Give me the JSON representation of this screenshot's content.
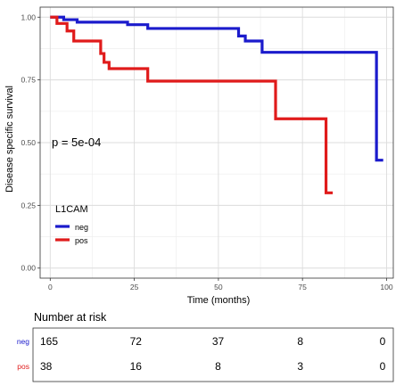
{
  "chart_data": [
    {
      "type": "line",
      "subtype": "kaplan-meier",
      "xlabel": "Time (months)",
      "ylabel": "Disease specific survival",
      "xlim": [
        -3,
        102
      ],
      "ylim": [
        -0.04,
        1.04
      ],
      "x_ticks": [
        0,
        25,
        50,
        75,
        100
      ],
      "x_tick_labels": [
        "0",
        "25",
        "50",
        "75",
        "100"
      ],
      "y_ticks": [
        0,
        0.25,
        0.5,
        0.75,
        1
      ],
      "y_tick_labels": [
        "0.00",
        "0.25",
        "0.50",
        "0.75",
        "1.00"
      ],
      "grid": true,
      "annotation": "p = 5e-04",
      "legend": {
        "title": "L1CAM",
        "placement": "left-bottom inside",
        "entries": [
          "neg",
          "pos"
        ]
      },
      "series": [
        {
          "name": "neg",
          "color": "#1b1bcc",
          "steps": [
            [
              0,
              1.0
            ],
            [
              4,
              0.99
            ],
            [
              8,
              0.98
            ],
            [
              23,
              0.97
            ],
            [
              29,
              0.955
            ],
            [
              56,
              0.925
            ],
            [
              58,
              0.905
            ],
            [
              63,
              0.86
            ],
            [
              97,
              0.43
            ],
            [
              99,
              0.43
            ]
          ]
        },
        {
          "name": "pos",
          "color": "#e01b1b",
          "steps": [
            [
              0,
              1.0
            ],
            [
              2,
              0.975
            ],
            [
              5,
              0.945
            ],
            [
              7,
              0.905
            ],
            [
              15,
              0.855
            ],
            [
              16,
              0.82
            ],
            [
              17.5,
              0.795
            ],
            [
              29,
              0.745
            ],
            [
              67,
              0.595
            ],
            [
              82,
              0.3
            ],
            [
              84,
              0.3
            ]
          ]
        }
      ]
    },
    {
      "type": "table",
      "title": "Number at risk",
      "x": [
        0,
        25,
        50,
        75,
        100
      ],
      "rows": [
        {
          "label": "neg",
          "color": "#1b1bcc",
          "values": [
            "165",
            "72",
            "37",
            "8",
            "0"
          ]
        },
        {
          "label": "pos",
          "color": "#e01b1b",
          "values": [
            "38",
            "16",
            "8",
            "3",
            "0"
          ]
        }
      ]
    }
  ]
}
